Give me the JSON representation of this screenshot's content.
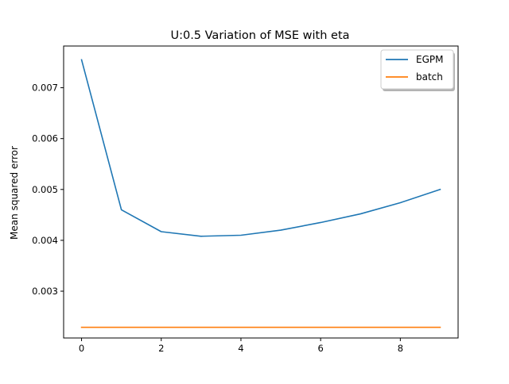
{
  "chart_data": {
    "type": "line",
    "title": "U:0.5 Variation of MSE with eta",
    "xlabel": "",
    "ylabel": "Mean squared error",
    "xlim": [
      -0.45,
      9.45
    ],
    "ylim": [
      0.00208,
      0.00782
    ],
    "xticks": [
      0,
      2,
      4,
      6,
      8
    ],
    "yticks": [
      0.003,
      0.004,
      0.005,
      0.006,
      0.007
    ],
    "grid": false,
    "legend_position": "top-right",
    "x": [
      0,
      1,
      2,
      3,
      4,
      5,
      6,
      7,
      8,
      9
    ],
    "series": [
      {
        "name": "EGPM",
        "color": "#1f77b4",
        "values": [
          0.00755,
          0.0046,
          0.00417,
          0.00408,
          0.0041,
          0.0042,
          0.00435,
          0.00452,
          0.00474,
          0.005
        ]
      },
      {
        "name": "batch",
        "color": "#ff7f0e",
        "values": [
          0.00229,
          0.00229,
          0.00229,
          0.00229,
          0.00229,
          0.00229,
          0.00229,
          0.00229,
          0.00229,
          0.00229
        ]
      }
    ]
  }
}
